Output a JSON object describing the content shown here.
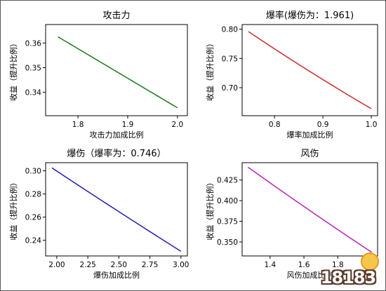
{
  "watermark": {
    "text": "18183"
  },
  "chart_data": [
    {
      "type": "line",
      "title": "攻击力",
      "xlabel": "攻击力加成比例",
      "ylabel": "收益（提升比例）",
      "color": "#1a7a1a",
      "x": [
        1.76,
        2.0
      ],
      "y": [
        0.3625,
        0.3337
      ],
      "curvature": 0,
      "xlim": [
        1.735,
        2.02
      ],
      "ylim": [
        0.3305,
        0.3675
      ],
      "xticks": [
        {
          "v": 1.8,
          "label": "1.8"
        },
        {
          "v": 1.9,
          "label": "1.9"
        },
        {
          "v": 2.0,
          "label": "2.0"
        }
      ],
      "yticks": [
        {
          "v": 0.34,
          "label": "0.34"
        },
        {
          "v": 0.35,
          "label": "0.35"
        },
        {
          "v": 0.36,
          "label": "0.36"
        }
      ]
    },
    {
      "type": "line",
      "title": "爆率(爆伤为：1.961)",
      "xlabel": "爆率加成比例",
      "ylabel": "收益（提升比例）",
      "color": "#cc2b2b",
      "x": [
        0.746,
        1.0
      ],
      "y": [
        0.796,
        0.664
      ],
      "curvature": 0.035,
      "xlim": [
        0.733,
        1.013
      ],
      "ylim": [
        0.652,
        0.808
      ],
      "xticks": [
        {
          "v": 0.8,
          "label": "0.8"
        },
        {
          "v": 0.9,
          "label": "0.9"
        },
        {
          "v": 1.0,
          "label": "1.0"
        }
      ],
      "yticks": [
        {
          "v": 0.7,
          "label": "0.70"
        },
        {
          "v": 0.75,
          "label": "0.75"
        },
        {
          "v": 0.8,
          "label": "0.80"
        }
      ]
    },
    {
      "type": "line",
      "title": "爆伤（爆率为：0.746）",
      "xlabel": "爆伤加成比例",
      "ylabel": "收益（提升比例）",
      "color": "#1f1fb4",
      "x": [
        1.961,
        3.0
      ],
      "y": [
        0.3025,
        0.2305
      ],
      "curvature": 0.012,
      "xlim": [
        1.91,
        3.052
      ],
      "ylim": [
        0.2265,
        0.307
      ],
      "xticks": [
        {
          "v": 2.0,
          "label": "2.00"
        },
        {
          "v": 2.25,
          "label": "2.25"
        },
        {
          "v": 2.5,
          "label": "2.50"
        },
        {
          "v": 2.75,
          "label": "2.75"
        },
        {
          "v": 3.0,
          "label": "3.00"
        }
      ],
      "yticks": [
        {
          "v": 0.24,
          "label": "0.24"
        },
        {
          "v": 0.26,
          "label": "0.26"
        },
        {
          "v": 0.28,
          "label": "0.28"
        },
        {
          "v": 0.3,
          "label": "0.30"
        }
      ]
    },
    {
      "type": "line",
      "title": "风伤",
      "xlabel": "风伤加成比例",
      "ylabel": "收益（提升比例）",
      "color": "#bb22bb",
      "x": [
        1.27,
        2.0
      ],
      "y": [
        0.4405,
        0.3375
      ],
      "curvature": 0.02,
      "xlim": [
        1.235,
        2.035
      ],
      "ylim": [
        0.333,
        0.446
      ],
      "xticks": [
        {
          "v": 1.4,
          "label": "1.4"
        },
        {
          "v": 1.6,
          "label": "1.6"
        },
        {
          "v": 1.8,
          "label": "1.8"
        }
      ],
      "yticks": [
        {
          "v": 0.35,
          "label": "0.350"
        },
        {
          "v": 0.375,
          "label": "0.375"
        },
        {
          "v": 0.4,
          "label": "0.400"
        },
        {
          "v": 0.425,
          "label": "0.425"
        }
      ]
    }
  ]
}
